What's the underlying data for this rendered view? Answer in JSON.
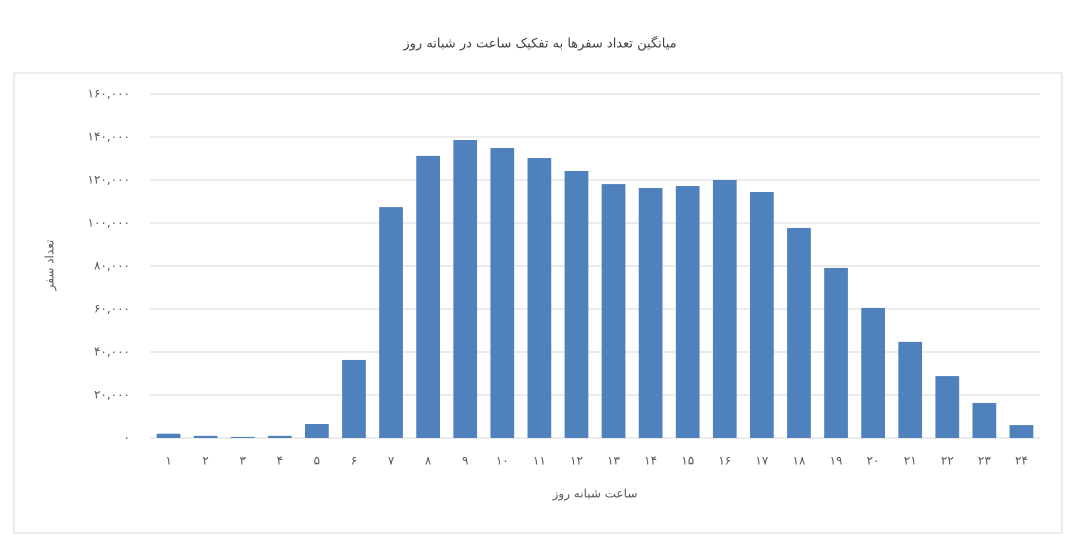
{
  "chart_data": {
    "type": "bar",
    "title": "میانگین تعداد سفرها به تفکیک ساعت در شبانه روز",
    "x_label": "ساعت شبانه روز",
    "y_label": "تعداد سفر",
    "categories": [
      "۱",
      "۲",
      "۳",
      "۴",
      "۵",
      "۶",
      "۷",
      "۸",
      "۹",
      "۱۰",
      "۱۱",
      "۱۲",
      "۱۳",
      "۱۴",
      "۱۵",
      "۱۶",
      "۱۷",
      "۱۸",
      "۱۹",
      "۲۰",
      "۲۱",
      "۲۲",
      "۲۳",
      "۲۴"
    ],
    "values": [
      2000,
      1000,
      500,
      1000,
      6500,
      36300,
      107400,
      131200,
      138600,
      134900,
      130200,
      124200,
      118100,
      116300,
      117200,
      120000,
      114400,
      97700,
      79100,
      60500,
      44700,
      28800,
      16300,
      6000
    ],
    "color": "#4f81bd",
    "ylim": [
      0,
      160000
    ],
    "yticks": [
      {
        "value": 0,
        "label": "۰"
      },
      {
        "value": 20000,
        "label": "۲۰,۰۰۰"
      },
      {
        "value": 40000,
        "label": "۴۰,۰۰۰"
      },
      {
        "value": 60000,
        "label": "۶۰,۰۰۰"
      },
      {
        "value": 80000,
        "label": "۸۰,۰۰۰"
      },
      {
        "value": 100000,
        "label": "۱۰۰,۰۰۰"
      },
      {
        "value": 120000,
        "label": "۱۲۰,۰۰۰"
      },
      {
        "value": 140000,
        "label": "۱۴۰,۰۰۰"
      },
      {
        "value": 160000,
        "label": "۱۶۰,۰۰۰"
      }
    ],
    "grid": true
  }
}
